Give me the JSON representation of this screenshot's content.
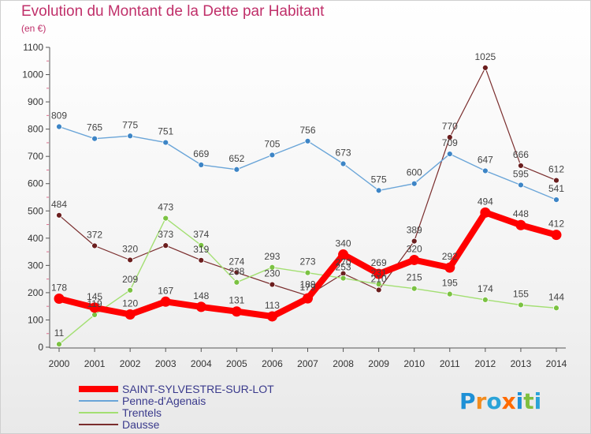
{
  "title": "Evolution du Montant de la Dette par Habitant",
  "subtitle": "(en €)",
  "logo": "Proxiti",
  "chart_data": {
    "type": "line",
    "title": "Evolution du Montant de la Dette par Habitant",
    "subtitle": "(en €)",
    "x": [
      "2000",
      "2001",
      "2002",
      "2003",
      "2004",
      "2005",
      "2006",
      "2007",
      "2008",
      "2009",
      "2010",
      "2011",
      "2012",
      "2013",
      "2014"
    ],
    "yticks": [
      0,
      100,
      200,
      300,
      400,
      500,
      600,
      700,
      800,
      900,
      1000,
      1100
    ],
    "ylim": [
      0,
      1100
    ],
    "grid": false,
    "legend_position": "bottom-left",
    "series": [
      {
        "name": "SAINT-SYLVESTRE-SUR-LOT",
        "color": "#ff0000",
        "marker": "#ff0000",
        "width": 8,
        "values": [
          178,
          145,
          120,
          167,
          148,
          131,
          113,
          179,
          340,
          269,
          320,
          292,
          494,
          448,
          412
        ]
      },
      {
        "name": "Penne-d'Agenais",
        "color": "#6aa5d8",
        "marker": "#3d85c6",
        "width": 1.4,
        "values": [
          809,
          765,
          775,
          751,
          669,
          652,
          705,
          756,
          673,
          575,
          600,
          709,
          647,
          595,
          541
        ]
      },
      {
        "name": "Trentels",
        "color": "#a3df72",
        "marker": "#7bc242",
        "width": 1.4,
        "values": [
          11,
          119,
          209,
          473,
          374,
          238,
          293,
          273,
          253,
          231,
          215,
          195,
          174,
          155,
          144
        ]
      },
      {
        "name": "Dausse",
        "color": "#7a2d2d",
        "marker": "#6b1e1e",
        "width": 1.2,
        "values": [
          484,
          372,
          320,
          373,
          319,
          274,
          230,
          189,
          270,
          210,
          389,
          770,
          1025,
          666,
          612
        ]
      }
    ],
    "data_labels": [
      {
        "series": 0,
        "labels": [
          "178",
          "145",
          "120",
          "167",
          "148",
          "131",
          "113",
          "179",
          "340",
          "269",
          "320",
          "292",
          "494",
          "448",
          "412"
        ]
      },
      {
        "series": 1,
        "labels": [
          "809",
          "765",
          "775",
          "751",
          "669",
          "652",
          "705",
          "756",
          "673",
          "575",
          "600",
          "709",
          "647",
          "595",
          "541"
        ]
      },
      {
        "series": 2,
        "labels": [
          "11",
          "119",
          "209",
          "473",
          "374",
          "238",
          "293",
          "273",
          "253",
          "231",
          "215",
          "195",
          "174",
          "155",
          "144"
        ]
      },
      {
        "series": 3,
        "labels": [
          "484",
          "372",
          "320",
          "373",
          "319",
          "274",
          "230",
          "189",
          "270",
          "210",
          "389",
          "770",
          "1025",
          "666",
          "612"
        ]
      }
    ]
  }
}
